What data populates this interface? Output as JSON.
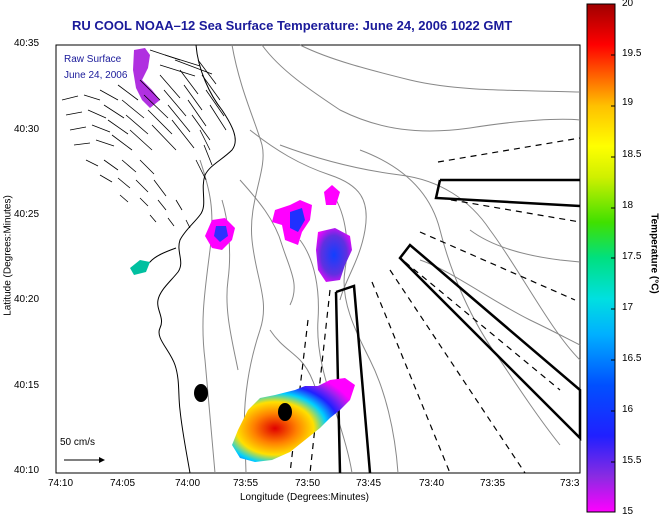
{
  "title": "RU COOL   NOAA–12  Sea Surface Temperature:  June 24, 2006 1022 GMT",
  "overlay": {
    "line1": "Raw Surface",
    "line2": "June 24, 2006"
  },
  "axes": {
    "xlabel": "Longitude (Degrees:Minutes)",
    "ylabel": "Latitude (Degrees:Minutes)",
    "x_ticks": [
      "74:10",
      "74:05",
      "74:00",
      "73:55",
      "73:50",
      "73:45",
      "73:40",
      "73:35",
      "73:3"
    ],
    "y_ticks": [
      "40:35",
      "40:30",
      "40:25",
      "40:20",
      "40:15",
      "40:10"
    ]
  },
  "colorbar": {
    "label": "Temperature (°C)",
    "ticks": [
      "20",
      "19.5",
      "19",
      "18.5",
      "18",
      "17.5",
      "17",
      "16.5",
      "16",
      "15.5",
      "15"
    ],
    "min": 15,
    "max": 20
  },
  "scale": {
    "label": "50 cm/s"
  }
}
